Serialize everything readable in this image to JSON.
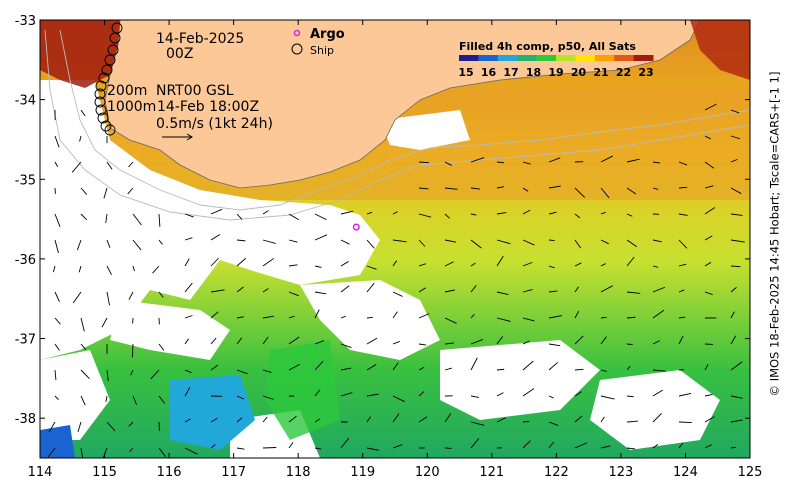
{
  "map": {
    "lon_range": [
      114,
      125
    ],
    "lat_range": [
      -38.5,
      -33
    ],
    "x_ticks": [
      "114",
      "115",
      "116",
      "117",
      "118",
      "119",
      "120",
      "121",
      "122",
      "123",
      "124",
      "125"
    ],
    "y_ticks": [
      "-33",
      "-34",
      "-35",
      "-36",
      "-37",
      "-38"
    ],
    "land_color": "#fdc898",
    "coastline_color": "#666666"
  },
  "annotations": {
    "date": "14-Feb-2025",
    "hour": "00Z",
    "contour_200m": "200m",
    "contour_1000m": "1000m",
    "product": "NRT00 GSL",
    "velocity_time": "14-Feb 18:00Z",
    "velocity_scale": "0.5m/s (1kt 24h)"
  },
  "legend": {
    "argo_label": "Argo",
    "ship_label": "Ship",
    "argo_color": "#e020e0"
  },
  "colorbar": {
    "title": "Filled 4h comp, p50, All Sats",
    "labels": [
      "15",
      "16",
      "17",
      "18",
      "19",
      "20",
      "21",
      "22",
      "23"
    ],
    "colors": [
      "#1e1e8c",
      "#1a64d2",
      "#22a8d8",
      "#22b46e",
      "#2dc83c",
      "#b4e628",
      "#ffe600",
      "#ffa000",
      "#e05a14",
      "#a01c10"
    ]
  },
  "argo_float": {
    "lon": 118.9,
    "lat": -35.6
  },
  "credit": "© IMOS 18-Feb-2025 14:45 Hobart; Tscale=CARS+[-1 1]"
}
